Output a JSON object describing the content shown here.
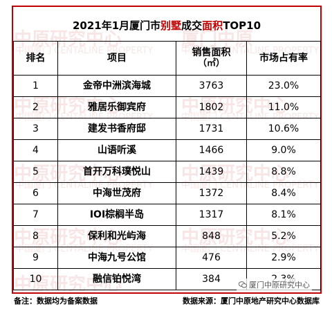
{
  "title": {
    "prefix": "2021年1月厦门市",
    "highlight1": "别墅",
    "middle": "成交",
    "highlight2": "面积",
    "suffix": "TOP10"
  },
  "table": {
    "headers": {
      "rank": "排名",
      "project": "项目",
      "area": "销售面积",
      "area_unit": "（㎡）",
      "share": "市场占有率"
    },
    "rows": [
      {
        "rank": "1",
        "project": "金帝中洲滨海城",
        "area": "3763",
        "share": "23.0%"
      },
      {
        "rank": "2",
        "project": "雅居乐御宾府",
        "area": "1802",
        "share": "11.0%"
      },
      {
        "rank": "3",
        "project": "建发书香府邸",
        "area": "1731",
        "share": "10.6%"
      },
      {
        "rank": "4",
        "project": "山语听溪",
        "area": "1466",
        "share": "9.0%"
      },
      {
        "rank": "5",
        "project": "首开万科璞悦山",
        "area": "1439",
        "share": "8.8%"
      },
      {
        "rank": "6",
        "project": "中海世茂府",
        "area": "1372",
        "share": "8.4%"
      },
      {
        "rank": "7",
        "project": "IOI棕榈半岛",
        "area": "1317",
        "share": "8.1%"
      },
      {
        "rank": "8",
        "project": "保利和光屿海",
        "area": "848",
        "share": "5.2%"
      },
      {
        "rank": "9",
        "project": "中海九号公馆",
        "area": "476",
        "share": "2.9%"
      },
      {
        "rank": "10",
        "project": "融信铂悦湾",
        "area": "384",
        "share": "2.3%"
      }
    ]
  },
  "footer": {
    "note": "备注：数据均为备案数据",
    "source": "数据来源：厦门中原地产研究中心数据库"
  },
  "wechat": {
    "label": "厦门中原研究中心",
    "icon": "wechat-icon"
  },
  "watermark": {
    "text": "中原研究中心",
    "text_alt": "厦门中原",
    "small": "中国厦门 CENTALINE PROPERTY"
  },
  "colors": {
    "accent": "#c00000"
  }
}
